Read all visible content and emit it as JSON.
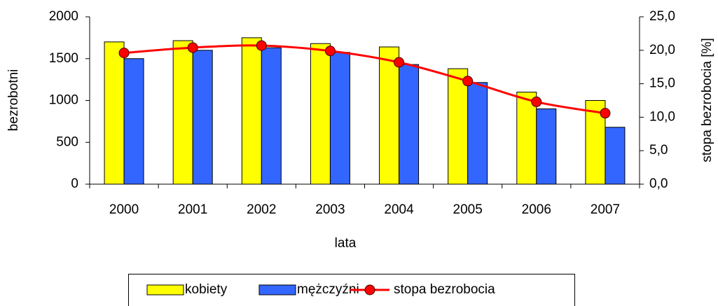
{
  "chart_data": {
    "type": "bar",
    "xlabel": "lata",
    "ylabel": "bezrobotni",
    "y2label": "stopa bezrobocia [%]",
    "categories": [
      "2000",
      "2001",
      "2002",
      "2003",
      "2004",
      "2005",
      "2006",
      "2007"
    ],
    "series": [
      {
        "name": "kobiety",
        "color": "#ffff00",
        "values": [
          1700,
          1715,
          1750,
          1680,
          1640,
          1380,
          1100,
          1000
        ]
      },
      {
        "name": "mężczyźni",
        "color": "#3366ff",
        "values": [
          1500,
          1600,
          1630,
          1575,
          1430,
          1215,
          900,
          680
        ]
      },
      {
        "name": "stopa bezrobocia",
        "color": "#ff0000",
        "type": "line",
        "axis": "y2",
        "values": [
          19.6,
          20.4,
          20.7,
          19.9,
          18.2,
          15.4,
          12.3,
          10.6
        ]
      }
    ],
    "ylim": [
      0,
      2000
    ],
    "yticks": [
      0,
      500,
      1000,
      1500,
      2000
    ],
    "y2lim": [
      0,
      25
    ],
    "y2ticks": [
      {
        "value": 0,
        "label": "0,0"
      },
      {
        "value": 5,
        "label": "5,0"
      },
      {
        "value": 10,
        "label": "10,0"
      },
      {
        "value": 15,
        "label": "15,0"
      },
      {
        "value": 20,
        "label": "20,0"
      },
      {
        "value": 25,
        "label": "25,0"
      }
    ],
    "legend": "bottom"
  }
}
